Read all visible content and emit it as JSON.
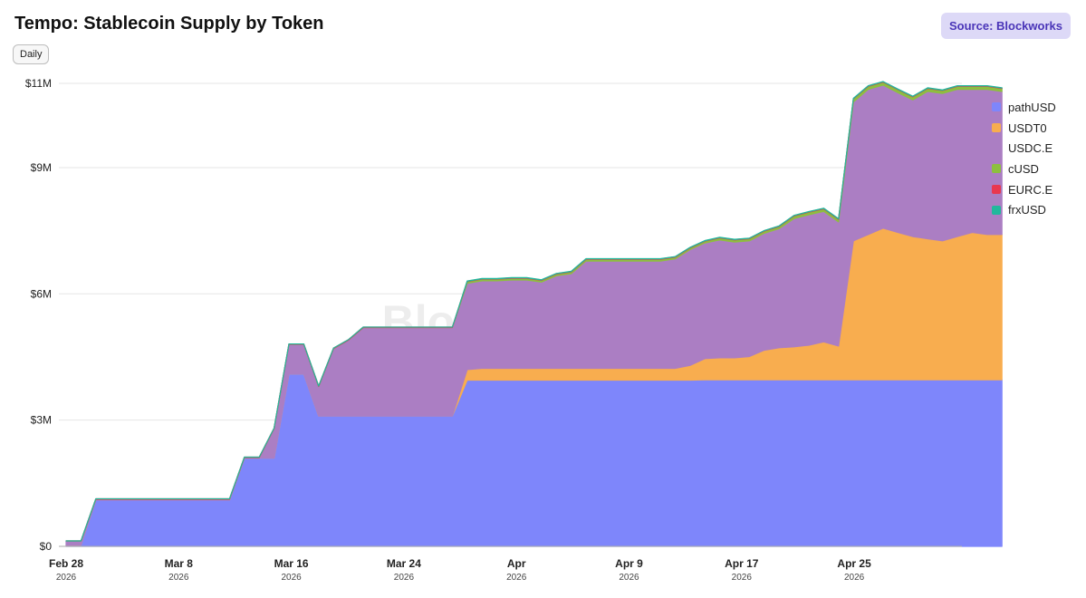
{
  "header": {
    "title": "Tempo: Stablecoin Supply by Token",
    "source": "Source: Blockworks",
    "period_button": "Daily"
  },
  "watermark": "Blockworks",
  "colors": {
    "pathUSD": "#7e86fb",
    "USDT0": "#f8ad4f",
    "USDC.E": "#ab7ec3",
    "cUSD": "#8dbf3f",
    "EURC.E": "#e8384f",
    "frxUSD": "#22b89c"
  },
  "chart_data": {
    "type": "area",
    "stacked": true,
    "title": "Tempo: Stablecoin Supply by Token",
    "ylim": [
      0,
      11000000
    ],
    "y_ticks": [
      {
        "value": 0,
        "label": "$0"
      },
      {
        "value": 3000000,
        "label": "$3M"
      },
      {
        "value": 6000000,
        "label": "$6M"
      },
      {
        "value": 9000000,
        "label": "$9M"
      },
      {
        "value": 11000000,
        "label": "$11M"
      }
    ],
    "x_ticks": [
      {
        "day": 0,
        "label": "Feb 28",
        "sub": "2026"
      },
      {
        "day": 8,
        "label": "Mar 8",
        "sub": "2026"
      },
      {
        "day": 16,
        "label": "Mar 16",
        "sub": "2026"
      },
      {
        "day": 24,
        "label": "Mar 24",
        "sub": "2026"
      },
      {
        "day": 32,
        "label": "Apr",
        "sub": "2026"
      },
      {
        "day": 40,
        "label": "Apr 9",
        "sub": "2026"
      },
      {
        "day": 48,
        "label": "Apr 17",
        "sub": "2026"
      },
      {
        "day": 56,
        "label": "Apr 25",
        "sub": "2026"
      }
    ],
    "x": [
      "2026-03-01",
      "2026-03-02",
      "2026-03-03",
      "2026-03-04",
      "2026-03-05",
      "2026-03-06",
      "2026-03-07",
      "2026-03-08",
      "2026-03-09",
      "2026-03-10",
      "2026-03-11",
      "2026-03-12",
      "2026-03-13",
      "2026-03-14",
      "2026-03-15",
      "2026-03-16",
      "2026-03-17",
      "2026-03-18",
      "2026-03-19",
      "2026-03-20",
      "2026-03-21",
      "2026-03-22",
      "2026-03-23",
      "2026-03-24",
      "2026-03-25",
      "2026-03-26",
      "2026-03-27",
      "2026-03-28",
      "2026-03-29",
      "2026-03-30",
      "2026-03-31",
      "2026-04-01",
      "2026-04-02",
      "2026-04-03",
      "2026-04-04",
      "2026-04-05",
      "2026-04-06",
      "2026-04-07",
      "2026-04-08",
      "2026-04-09",
      "2026-04-10",
      "2026-04-11",
      "2026-04-12",
      "2026-04-13",
      "2026-04-14",
      "2026-04-15",
      "2026-04-16",
      "2026-04-17",
      "2026-04-18",
      "2026-04-19",
      "2026-04-20",
      "2026-04-21",
      "2026-04-22",
      "2026-04-23",
      "2026-04-24",
      "2026-04-25",
      "2026-04-26",
      "2026-04-27",
      "2026-04-28",
      "2026-04-29",
      "2026-04-30",
      "2026-05-01",
      "2026-05-02",
      "2026-05-03"
    ],
    "series": [
      {
        "name": "pathUSD",
        "values": [
          0.03,
          0.03,
          1.1,
          1.1,
          1.1,
          1.1,
          1.1,
          1.1,
          1.1,
          1.1,
          1.1,
          1.1,
          2.1,
          2.1,
          2.1,
          4.1,
          4.1,
          3.1,
          3.1,
          3.1,
          3.1,
          3.1,
          3.1,
          3.1,
          3.1,
          3.1,
          3.1,
          3.95,
          3.95,
          3.95,
          3.95,
          3.95,
          3.95,
          3.95,
          3.95,
          3.95,
          3.95,
          3.95,
          3.95,
          3.95,
          3.95,
          3.95,
          3.95,
          3.96,
          3.96,
          3.96,
          3.96,
          3.96,
          3.96,
          3.96,
          3.96,
          3.96,
          3.96,
          3.96,
          3.96,
          3.96,
          3.96,
          3.96,
          3.96,
          3.96,
          3.96,
          3.96,
          3.96,
          3.96
        ]
      },
      {
        "name": "USDT0",
        "values": [
          0,
          0,
          0,
          0,
          0,
          0,
          0,
          0,
          0,
          0,
          0,
          0,
          0,
          0,
          0,
          0,
          0,
          0,
          0,
          0,
          0,
          0,
          0,
          0,
          0,
          0,
          0,
          0.25,
          0.28,
          0.28,
          0.28,
          0.28,
          0.28,
          0.28,
          0.28,
          0.28,
          0.28,
          0.28,
          0.28,
          0.28,
          0.28,
          0.28,
          0.35,
          0.5,
          0.52,
          0.52,
          0.55,
          0.7,
          0.76,
          0.78,
          0.82,
          0.9,
          0.8,
          3.3,
          3.45,
          3.6,
          3.5,
          3.4,
          3.35,
          3.3,
          3.4,
          3.5,
          3.45,
          3.45
        ]
      },
      {
        "name": "USDC.E",
        "values": [
          0.1,
          0.1,
          0.02,
          0.02,
          0.02,
          0.02,
          0.02,
          0.02,
          0.02,
          0.02,
          0.02,
          0.02,
          0.01,
          0.01,
          0.7,
          0.7,
          0.7,
          0.7,
          1.6,
          1.8,
          2.1,
          2.1,
          2.1,
          2.1,
          2.1,
          2.1,
          2.1,
          2.05,
          2.08,
          2.08,
          2.1,
          2.1,
          2.05,
          2.2,
          2.25,
          2.55,
          2.55,
          2.55,
          2.55,
          2.55,
          2.55,
          2.6,
          2.75,
          2.75,
          2.8,
          2.75,
          2.75,
          2.78,
          2.83,
          3.05,
          3.1,
          3.1,
          2.95,
          3.3,
          3.45,
          3.4,
          3.32,
          3.25,
          3.5,
          3.5,
          3.5,
          3.4,
          3.45,
          3.4
        ]
      },
      {
        "name": "cUSD",
        "values": [
          0,
          0,
          0,
          0,
          0,
          0,
          0,
          0,
          0,
          0,
          0,
          0,
          0,
          0,
          0,
          0,
          0,
          0,
          0,
          0,
          0,
          0,
          0,
          0,
          0,
          0,
          0,
          0.04,
          0.04,
          0.04,
          0.04,
          0.04,
          0.04,
          0.04,
          0.04,
          0.04,
          0.04,
          0.04,
          0.04,
          0.04,
          0.04,
          0.04,
          0.04,
          0.04,
          0.05,
          0.05,
          0.05,
          0.05,
          0.05,
          0.06,
          0.06,
          0.06,
          0.06,
          0.07,
          0.07,
          0.07,
          0.07,
          0.07,
          0.07,
          0.07,
          0.07,
          0.07,
          0.07,
          0.07
        ]
      },
      {
        "name": "EURC.E",
        "values": [
          0,
          0,
          0.01,
          0.01,
          0.01,
          0.01,
          0.01,
          0.01,
          0.01,
          0.01,
          0.01,
          0.01,
          0.01,
          0.01,
          0.01,
          0.01,
          0.01,
          0.01,
          0.01,
          0.01,
          0.01,
          0.01,
          0.01,
          0.01,
          0.01,
          0.01,
          0.01,
          0.01,
          0.01,
          0.01,
          0.01,
          0.01,
          0.01,
          0.01,
          0.01,
          0.01,
          0.01,
          0.01,
          0.01,
          0.01,
          0.01,
          0.01,
          0.01,
          0.01,
          0.01,
          0.01,
          0.01,
          0.01,
          0.01,
          0.01,
          0.01,
          0.01,
          0.01,
          0.01,
          0.01,
          0.01,
          0.01,
          0.01,
          0.01,
          0.01,
          0.01,
          0.01,
          0.01,
          0.01
        ]
      },
      {
        "name": "frxUSD",
        "values": [
          0,
          0,
          0,
          0,
          0,
          0,
          0,
          0,
          0,
          0,
          0,
          0,
          0,
          0,
          0,
          0,
          0,
          0,
          0,
          0,
          0,
          0,
          0,
          0,
          0,
          0,
          0,
          0.005,
          0.005,
          0.005,
          0.005,
          0.005,
          0.005,
          0.005,
          0.005,
          0.005,
          0.005,
          0.005,
          0.005,
          0.005,
          0.005,
          0.005,
          0.005,
          0.005,
          0.005,
          0.005,
          0.005,
          0.005,
          0.005,
          0.005,
          0.005,
          0.005,
          0.005,
          0.005,
          0.005,
          0.005,
          0.005,
          0.005,
          0.005,
          0.005,
          0.005,
          0.005,
          0.005,
          0.005
        ]
      }
    ],
    "value_unit": "millions USD",
    "legend_position": "right",
    "grid": true
  }
}
